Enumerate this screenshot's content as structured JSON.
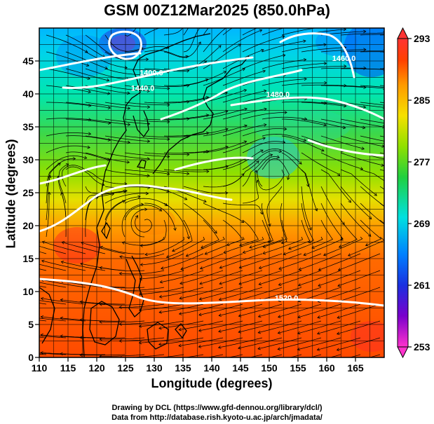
{
  "title": "GSM 00Z12Mar2025 (850.0hPa)",
  "xlabel": "Longitude (degrees)",
  "ylabel": "Latitude  (degrees)",
  "credits": [
    "Drawing by DCL (https://www.gfd-dennou.org/library/dcl/)",
    "Data from http://database.rish.kyoto-u.ac.jp/arch/jmadata/"
  ],
  "chart_data": {
    "type": "heatmap",
    "title": "GSM 00Z12Mar2025 (850.0hPa)",
    "xlabel": "Longitude (degrees)",
    "ylabel": "Latitude  (degrees)",
    "xlim": [
      110,
      170
    ],
    "ylim": [
      0,
      50
    ],
    "x_ticks": [
      110,
      115,
      120,
      125,
      130,
      135,
      140,
      145,
      150,
      155,
      160,
      165
    ],
    "y_ticks": [
      0,
      5,
      10,
      15,
      20,
      25,
      30,
      35,
      40,
      45
    ],
    "grid": true,
    "grid_spacing_deg": 2.5,
    "colorbar": {
      "min": 253,
      "max": 293,
      "ticks": [
        253,
        261,
        269,
        277,
        285,
        293
      ],
      "colors": [
        "#ff33cc",
        "#6a00cc",
        "#1030e0",
        "#0090ff",
        "#00e0e0",
        "#20d040",
        "#90e000",
        "#f5e000",
        "#ff9a00",
        "#ff4000",
        "#ff3333"
      ]
    },
    "contour_labels": [
      {
        "text": "1520.0",
        "lon": 153,
        "lat": 8.6
      },
      {
        "text": "1480.0",
        "lon": 151.5,
        "lat": 39.5
      },
      {
        "text": "1440.0",
        "lon": 128,
        "lat": 40.5
      },
      {
        "text": "1400.0",
        "lon": 129.5,
        "lat": 42.8
      },
      {
        "text": "1460.0",
        "lon": 163,
        "lat": 45
      }
    ]
  },
  "colors": {
    "contour": "#ffffff",
    "streamline": "#000000",
    "coastline": "#000000"
  }
}
